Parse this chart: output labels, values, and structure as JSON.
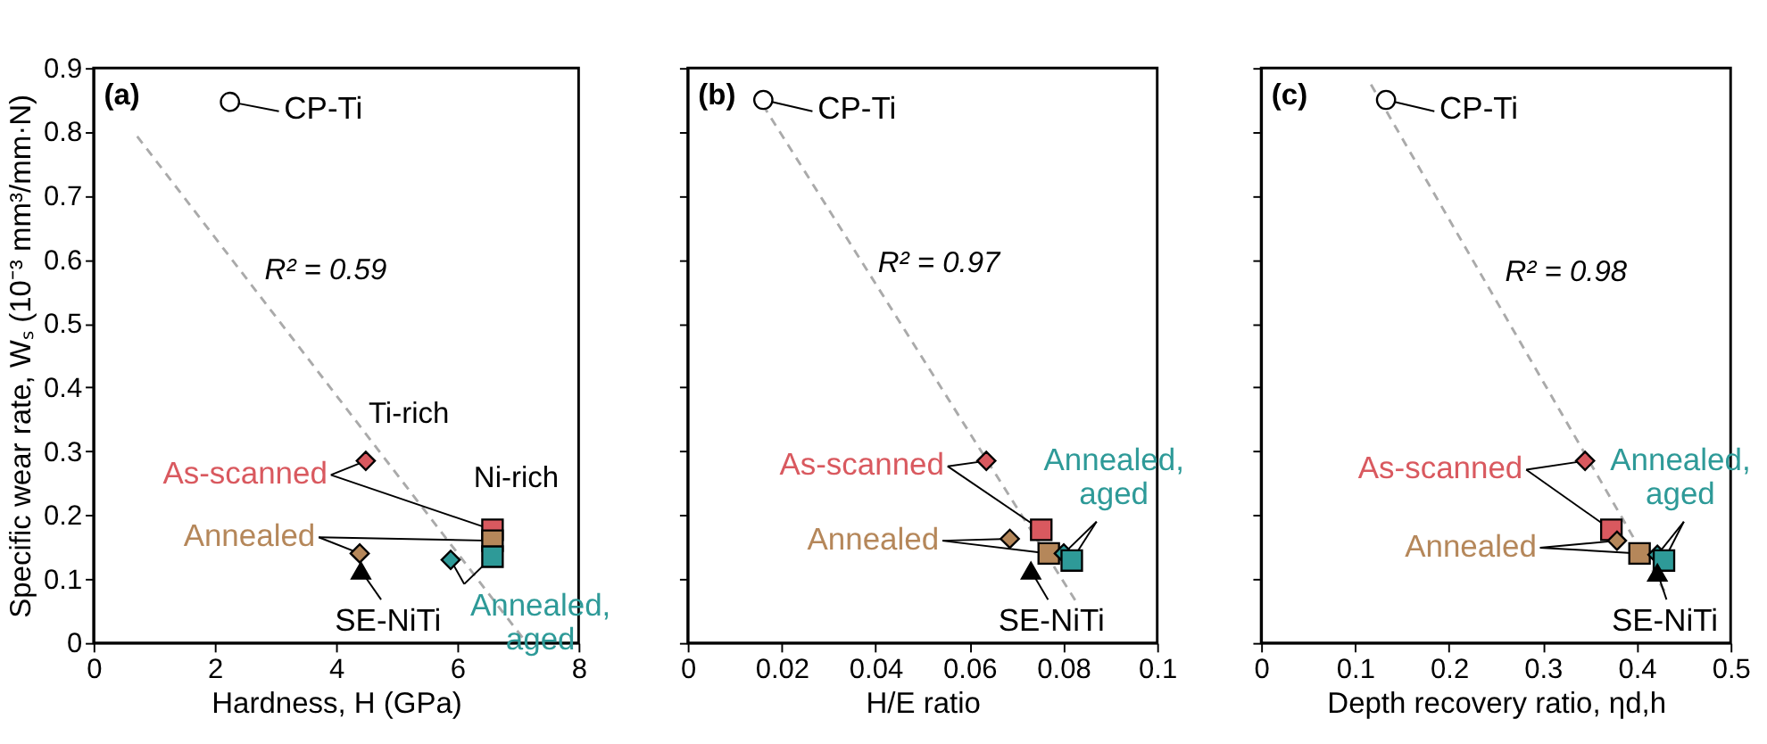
{
  "chart_data": [
    {
      "type": "scatter",
      "xlabel": "Hardness, H (GPa)",
      "ylabel": "Specific wear rate, Wₛ (10⁻³ mm³/mm·N)",
      "xlim": [
        0,
        8
      ],
      "xticks": [
        0,
        2,
        4,
        6,
        8
      ],
      "ylim": [
        0,
        0.9
      ],
      "yticks": [
        0,
        0.1,
        0.2,
        0.3,
        0.4,
        0.5,
        0.6,
        0.7,
        0.8,
        0.9
      ],
      "grid": false,
      "legend": "bottom right",
      "annotations": [
        "(a)",
        "R² = 0.59",
        "Ti-rich",
        "Ni-rich"
      ],
      "series": [
        {
          "type": "line",
          "color": "#aaaaaa",
          "line_style": "dashed",
          "x": [
            0.72,
            7.1
          ],
          "values": [
            0.793,
            0.005
          ]
        },
        {
          "name": "CP-Ti",
          "marker": "circle",
          "color": "#ffffff",
          "x": [
            2.25
          ],
          "values": [
            0.847
          ]
        },
        {
          "name": "As-scanned",
          "marker": "diamond",
          "color": "#d9595f",
          "x": [
            4.49
          ],
          "values": [
            0.285
          ]
        },
        {
          "marker": "square",
          "color": "#d9595f",
          "x": [
            6.58
          ],
          "values": [
            0.177
          ]
        },
        {
          "name": "Annealed",
          "marker": "diamond",
          "color": "#b5875a",
          "x": [
            4.39
          ],
          "values": [
            0.14
          ]
        },
        {
          "marker": "square",
          "color": "#b5875a",
          "x": [
            6.58
          ],
          "values": [
            0.16
          ]
        },
        {
          "name": "Annealed, aged",
          "marker": "diamond",
          "color": "#2e9a98",
          "x": [
            5.89
          ],
          "values": [
            0.13
          ]
        },
        {
          "marker": "square",
          "color": "#2e9a98",
          "x": [
            6.58
          ],
          "values": [
            0.135
          ]
        },
        {
          "name": "SE-NiTi",
          "marker": "triangle",
          "color": "#000000",
          "x": [
            4.41
          ],
          "values": [
            0.113
          ]
        }
      ]
    },
    {
      "type": "scatter",
      "xlabel": "H/E ratio",
      "xlim": [
        0,
        0.1
      ],
      "xticks": [
        0,
        0.02,
        0.04,
        0.06,
        0.08,
        0.1
      ],
      "ylim": [
        0,
        0.9
      ],
      "yticks": [
        0,
        0.1,
        0.2,
        0.3,
        0.4,
        0.5,
        0.6,
        0.7,
        0.8,
        0.9
      ],
      "tick_labels": "x",
      "grid": false,
      "legend": "bottom right",
      "annotations": [
        "(b)",
        "R² = 0.97"
      ],
      "series": [
        {
          "type": "line",
          "color": "#aaaaaa",
          "line_style": "dashed",
          "x": [
            0.016,
            0.0832
          ],
          "values": [
            0.842,
            0.059
          ]
        },
        {
          "name": "CP-Ti",
          "marker": "circle",
          "color": "#ffffff",
          "x": [
            0.0161
          ],
          "values": [
            0.85
          ]
        },
        {
          "name": "As-scanned",
          "marker": "diamond",
          "color": "#d9595f",
          "x": [
            0.0636
          ],
          "values": [
            0.285
          ]
        },
        {
          "marker": "square",
          "color": "#d9595f",
          "x": [
            0.0753
          ],
          "values": [
            0.177
          ]
        },
        {
          "name": "Annealed",
          "marker": "diamond",
          "color": "#b5875a",
          "x": [
            0.0686
          ],
          "values": [
            0.163
          ]
        },
        {
          "marker": "square",
          "color": "#b5875a",
          "x": [
            0.0769
          ],
          "values": [
            0.14
          ]
        },
        {
          "name": "Annealed, aged",
          "marker": "diamond",
          "color": "#2e9a98",
          "x": [
            0.0801
          ],
          "values": [
            0.14
          ]
        },
        {
          "marker": "square",
          "color": "#2e9a98",
          "x": [
            0.0818
          ],
          "values": [
            0.129
          ]
        },
        {
          "name": "SE-NiTi",
          "marker": "triangle",
          "color": "#000000",
          "x": [
            0.0731
          ],
          "values": [
            0.113
          ]
        }
      ]
    },
    {
      "type": "scatter",
      "xlabel": "Depth recovery ratio, ηd,h",
      "xlim": [
        0,
        0.5
      ],
      "xticks": [
        0,
        0.1,
        0.2,
        0.3,
        0.4,
        0.5
      ],
      "ylim": [
        0,
        0.9
      ],
      "yticks": [
        0,
        0.1,
        0.2,
        0.3,
        0.4,
        0.5,
        0.6,
        0.7,
        0.8,
        0.9
      ],
      "tick_labels": "x",
      "grid": false,
      "legend": "left",
      "annotations": [
        "(c)",
        "R² = 0.98"
      ],
      "series": [
        {
          "type": "line",
          "color": "#aaaaaa",
          "line_style": "dashed",
          "x": [
            0.117,
            0.43
          ],
          "values": [
            0.874,
            0.08
          ]
        },
        {
          "name": "CP-Ti",
          "marker": "circle",
          "color": "#ffffff",
          "x": [
            0.133
          ],
          "values": [
            0.85
          ]
        },
        {
          "name": "As-scanned",
          "marker": "diamond",
          "color": "#d9595f",
          "x": [
            0.345
          ],
          "values": [
            0.285
          ]
        },
        {
          "marker": "square",
          "color": "#d9595f",
          "x": [
            0.373
          ],
          "values": [
            0.177
          ]
        },
        {
          "name": "Annealed",
          "marker": "diamond",
          "color": "#b5875a",
          "x": [
            0.379
          ],
          "values": [
            0.16
          ]
        },
        {
          "marker": "square",
          "color": "#b5875a",
          "x": [
            0.403
          ],
          "values": [
            0.14
          ]
        },
        {
          "name": "Annealed, aged",
          "marker": "diamond",
          "color": "#2e9a98",
          "x": [
            0.422
          ],
          "values": [
            0.138
          ]
        },
        {
          "marker": "square",
          "color": "#2e9a98",
          "x": [
            0.429
          ],
          "values": [
            0.129
          ]
        },
        {
          "name": "SE-NiTi",
          "marker": "triangle",
          "color": "#000000",
          "x": [
            0.422
          ],
          "values": [
            0.11
          ]
        }
      ]
    }
  ]
}
